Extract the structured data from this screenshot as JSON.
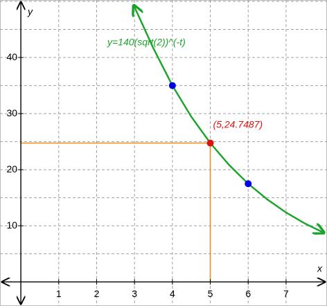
{
  "chart_data": {
    "type": "line",
    "annotation": "y=140(sqrt(2))^(-t)",
    "x_label": "x",
    "y_label": "y",
    "xlim": [
      -0.55,
      8.08
    ],
    "ylim": [
      -4.3,
      50.25
    ],
    "xticks": [
      1,
      2,
      3,
      4,
      5,
      6,
      7
    ],
    "yticks": [
      10,
      20,
      30,
      40
    ],
    "ygrid": [
      5,
      10,
      15,
      20,
      25,
      30,
      35,
      40,
      45,
      50
    ],
    "grid": true,
    "series": [
      {
        "color": "#1aa32a",
        "x": [
          2.98,
          3.5,
          4,
          4.5,
          5,
          5.5,
          6,
          6.5,
          7,
          7.5,
          8
        ],
        "values": [
          49.3,
          41.62,
          35,
          29.43,
          24.7487,
          20.81,
          17.5,
          14.72,
          12.37,
          10.4,
          8.75
        ]
      }
    ],
    "points": [
      {
        "x": 4,
        "y": 35,
        "color": "#0000e0"
      },
      {
        "x": 6,
        "y": 17.5,
        "color": "#0000e0"
      },
      {
        "x": 5,
        "y": 24.7487,
        "color": "#e01010",
        "label": "(5,24.7487)"
      }
    ],
    "guide_color": "#f0901a"
  }
}
